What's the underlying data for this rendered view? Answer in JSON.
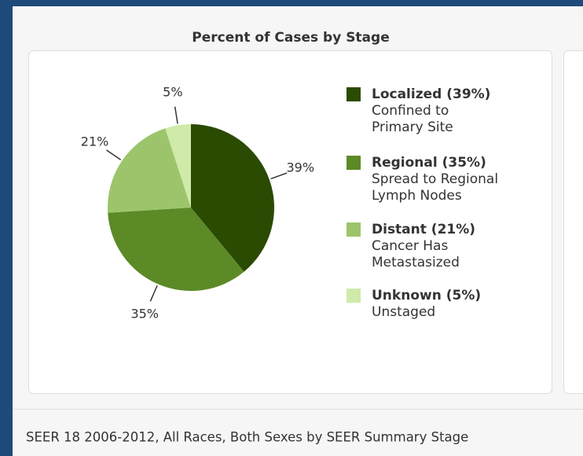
{
  "chart_data": {
    "type": "pie",
    "title": "Percent of Cases by Stage",
    "categories": [
      "Localized",
      "Regional",
      "Distant",
      "Unknown"
    ],
    "values": [
      39,
      35,
      21,
      5
    ],
    "value_labels": [
      "39%",
      "35%",
      "21%",
      "5%"
    ],
    "colors": [
      "#2b4a02",
      "#5b8a27",
      "#9cc56b",
      "#cfeaa9"
    ],
    "legend_labels": [
      "Localized (39%)",
      "Regional (35%)",
      "Distant (21%)",
      "Unknown (5%)"
    ],
    "descriptions": [
      [
        "Confined to",
        "Primary Site"
      ],
      [
        "Spread to Regional",
        "Lymph Nodes"
      ],
      [
        "Cancer Has",
        "Metastasized"
      ],
      [
        "Unstaged"
      ]
    ]
  },
  "footer": "SEER 18 2006-2012, All Races, Both Sexes by SEER Summary Stage"
}
